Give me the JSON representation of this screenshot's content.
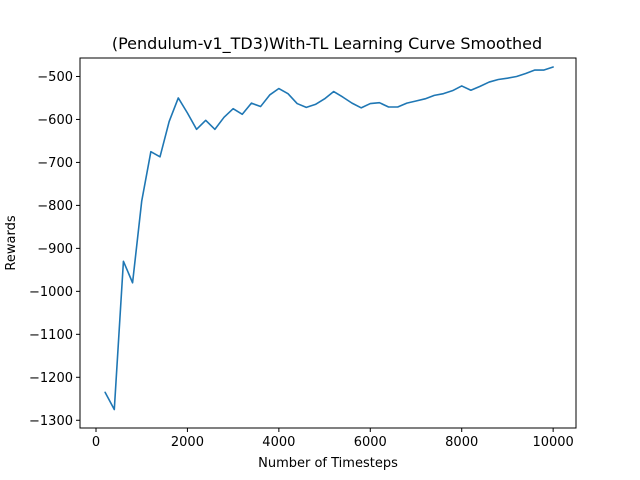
{
  "chart_data": {
    "type": "line",
    "title": "(Pendulum-v1_TD3)With-TL Learning Curve Smoothed",
    "xlabel": "Number of Timesteps",
    "ylabel": "Rewards",
    "xlim": [
      -350,
      10500
    ],
    "ylim": [
      -1318,
      -457
    ],
    "xticks": [
      0,
      2000,
      4000,
      6000,
      8000,
      10000
    ],
    "xtick_labels": [
      "0",
      "2000",
      "4000",
      "6000",
      "8000",
      "10000"
    ],
    "yticks": [
      -1300,
      -1200,
      -1100,
      -1000,
      -900,
      -800,
      -700,
      -600,
      -500
    ],
    "ytick_labels": [
      "−1300",
      "−1200",
      "−1100",
      "−1000",
      "−900",
      "−800",
      "−700",
      "−600",
      "−500"
    ],
    "grid": false,
    "series": [
      {
        "color": "#1f77b4",
        "x": [
          200,
          400,
          600,
          800,
          1000,
          1200,
          1400,
          1600,
          1800,
          2000,
          2200,
          2400,
          2600,
          2800,
          3000,
          3200,
          3400,
          3600,
          3800,
          4000,
          4200,
          4400,
          4600,
          4800,
          5000,
          5200,
          5400,
          5600,
          5800,
          6000,
          6200,
          6400,
          6600,
          6800,
          7000,
          7200,
          7400,
          7600,
          7800,
          8000,
          8200,
          8400,
          8600,
          8800,
          9000,
          9200,
          9400,
          9600,
          9800,
          10000
        ],
        "y": [
          -1235,
          -1275,
          -930,
          -980,
          -790,
          -675,
          -687,
          -605,
          -550,
          -585,
          -623,
          -602,
          -623,
          -595,
          -575,
          -588,
          -562,
          -570,
          -543,
          -528,
          -540,
          -563,
          -572,
          -565,
          -552,
          -535,
          -548,
          -562,
          -573,
          -563,
          -561,
          -571,
          -571,
          -562,
          -557,
          -552,
          -544,
          -540,
          -533,
          -522,
          -532,
          -523,
          -513,
          -507,
          -504,
          -500,
          -493,
          -485,
          -485,
          -478
        ]
      }
    ]
  }
}
